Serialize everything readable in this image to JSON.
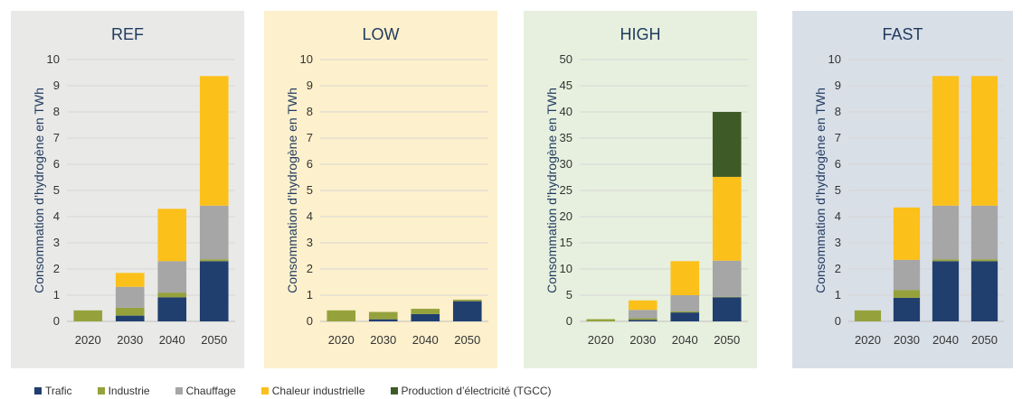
{
  "colors": {
    "Trafic": "#203f6f",
    "Industrie": "#95a23c",
    "Chauffage": "#a6a6a6",
    "Chaleur industrielle": "#fcc01a",
    "Production d’électricité (TGCC)": "#3e5b27"
  },
  "legend": [
    "Trafic",
    "Industrie",
    "Chauffage",
    "Chaleur industrielle",
    "Production d’électricité (TGCC)"
  ],
  "chart_data": [
    {
      "type": "bar",
      "stacked": true,
      "title": "REF",
      "background": "#e9e9e7",
      "ylabel": "Consommation d’hydrogène en TWh",
      "ylim": [
        0,
        10
      ],
      "yticks": [
        0,
        1,
        2,
        3,
        4,
        5,
        6,
        7,
        8,
        9,
        10
      ],
      "categories": [
        "2020",
        "2030",
        "2040",
        "2050"
      ],
      "series": [
        {
          "name": "Trafic",
          "values": [
            0,
            0.22,
            0.92,
            2.3
          ]
        },
        {
          "name": "Industrie",
          "values": [
            0.42,
            0.3,
            0.18,
            0.07
          ]
        },
        {
          "name": "Chauffage",
          "values": [
            0,
            0.8,
            1.2,
            2.05
          ]
        },
        {
          "name": "Chaleur industrielle",
          "values": [
            0,
            0.53,
            2.0,
            4.95
          ]
        },
        {
          "name": "Production d’électricité (TGCC)",
          "values": [
            0,
            0,
            0,
            0
          ]
        }
      ]
    },
    {
      "type": "bar",
      "stacked": true,
      "title": "LOW",
      "background": "#fdf0cc",
      "ylabel": "Consommation d’hydrogène en TWh",
      "ylim": [
        0,
        10
      ],
      "yticks": [
        0,
        1,
        2,
        3,
        4,
        5,
        6,
        7,
        8,
        9,
        10
      ],
      "categories": [
        "2020",
        "2030",
        "2040",
        "2050"
      ],
      "series": [
        {
          "name": "Trafic",
          "values": [
            0,
            0.08,
            0.28,
            0.77
          ]
        },
        {
          "name": "Industrie",
          "values": [
            0.42,
            0.28,
            0.2,
            0.06
          ]
        },
        {
          "name": "Chauffage",
          "values": [
            0,
            0,
            0,
            0
          ]
        },
        {
          "name": "Chaleur industrielle",
          "values": [
            0,
            0,
            0,
            0
          ]
        },
        {
          "name": "Production d’électricité (TGCC)",
          "values": [
            0,
            0,
            0,
            0
          ]
        }
      ]
    },
    {
      "type": "bar",
      "stacked": true,
      "title": "HIGH",
      "background": "#e7f0de",
      "ylabel": "Consommation d’hydrogène en TWh",
      "ylim": [
        0,
        50
      ],
      "yticks": [
        0,
        5,
        10,
        15,
        20,
        25,
        30,
        35,
        40,
        45,
        50
      ],
      "categories": [
        "2020",
        "2030",
        "2040",
        "2050"
      ],
      "series": [
        {
          "name": "Trafic",
          "values": [
            0,
            0.3,
            1.7,
            4.6
          ]
        },
        {
          "name": "Industrie",
          "values": [
            0.42,
            0.3,
            0.2,
            0.1
          ]
        },
        {
          "name": "Chauffage",
          "values": [
            0,
            1.6,
            3.1,
            6.9
          ]
        },
        {
          "name": "Chaleur industrielle",
          "values": [
            0,
            1.8,
            6.5,
            16.0
          ]
        },
        {
          "name": "Production d’électricité (TGCC)",
          "values": [
            0,
            0,
            0,
            12.4
          ]
        }
      ]
    },
    {
      "type": "bar",
      "stacked": true,
      "title": "FAST",
      "background": "#d9dfe7",
      "ylabel": "Consommation d’hydrogène en TWh",
      "ylim": [
        0,
        10
      ],
      "yticks": [
        0,
        1,
        2,
        3,
        4,
        5,
        6,
        7,
        8,
        9,
        10
      ],
      "categories": [
        "2020",
        "2030",
        "2040",
        "2050"
      ],
      "series": [
        {
          "name": "Trafic",
          "values": [
            0,
            0.9,
            2.3,
            2.3
          ]
        },
        {
          "name": "Industrie",
          "values": [
            0.42,
            0.3,
            0.07,
            0.07
          ]
        },
        {
          "name": "Chauffage",
          "values": [
            0,
            1.15,
            2.05,
            2.05
          ]
        },
        {
          "name": "Chaleur industrielle",
          "values": [
            0,
            2.0,
            4.95,
            4.95
          ]
        },
        {
          "name": "Production d’électricité (TGCC)",
          "values": [
            0,
            0,
            0,
            0
          ]
        }
      ]
    }
  ]
}
